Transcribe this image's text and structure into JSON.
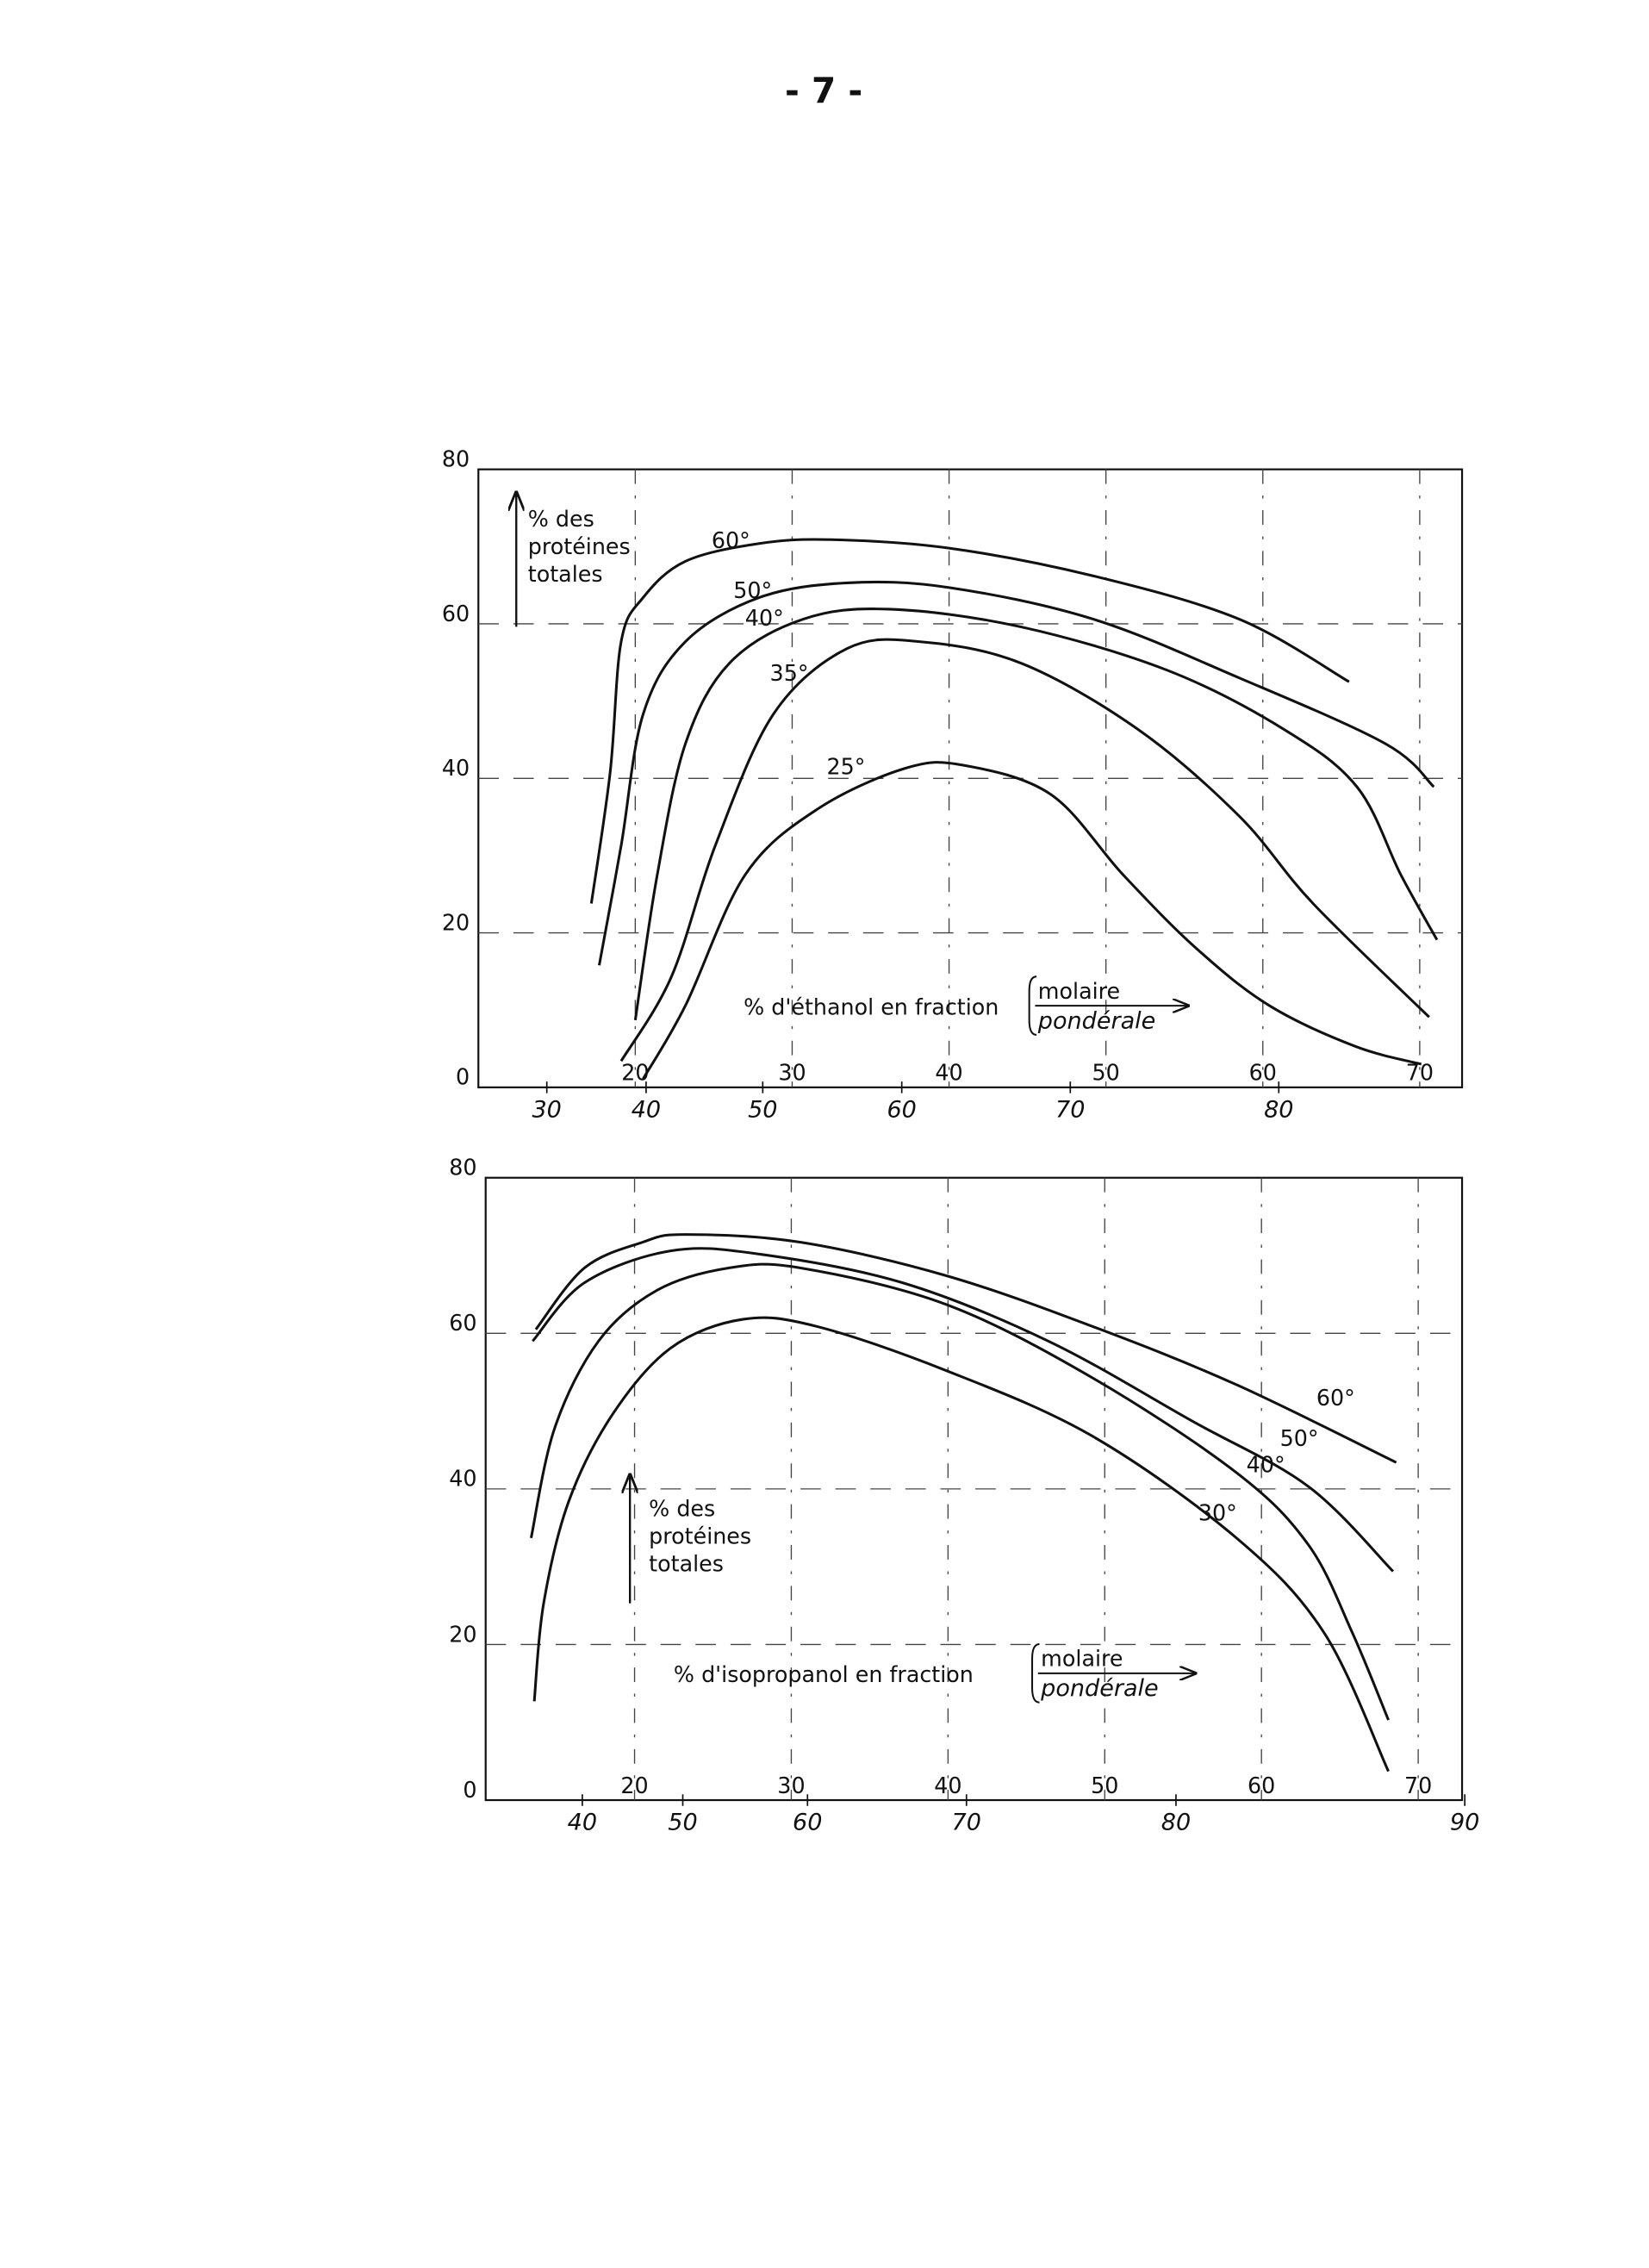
{
  "page": {
    "number": "- 7 -"
  },
  "chart_data": [
    {
      "type": "line",
      "ylabel": [
        "% des",
        "protéines",
        "totales"
      ],
      "xlabel": "% d'éthanol en fraction",
      "xaxis_label": "molaire",
      "x2axis_label": "pondérale",
      "xlim": [
        10,
        72.7
      ],
      "ylim": [
        0,
        80
      ],
      "xticks": [
        20,
        30,
        40,
        50,
        60,
        70
      ],
      "x2ticks": [
        30,
        40,
        50,
        60,
        70,
        80
      ],
      "yticks": [
        0,
        20,
        40,
        60,
        80
      ],
      "grid": true,
      "series": [
        {
          "name": "60°",
          "color": "#111111",
          "x": [
            17.2,
            18.4,
            19.1,
            20.5,
            23.2,
            27.9,
            32.5,
            40,
            49.2,
            58.5,
            65.5
          ],
          "values": [
            23.8,
            40.8,
            57.7,
            63.4,
            68.1,
            70.4,
            70.9,
            69.8,
            66.2,
            60.6,
            52.5
          ]
        },
        {
          "name": "50°",
          "color": "#111111",
          "x": [
            17.7,
            19.1,
            20.5,
            23.2,
            27.9,
            33.5,
            40,
            49.2,
            58.5,
            67.8,
            70.9
          ],
          "values": [
            15.8,
            31.3,
            48.3,
            57.7,
            63.4,
            65.3,
            64.7,
            60.6,
            53,
            44.5,
            38.9
          ]
        },
        {
          "name": "40°",
          "color": "#111111",
          "x": [
            20,
            21.4,
            23.2,
            26,
            30.7,
            36.2,
            44.6,
            53.9,
            61.3,
            66,
            68.8,
            71.1
          ],
          "values": [
            8.7,
            27.5,
            44.5,
            54.9,
            60.6,
            61.9,
            59.6,
            54,
            46.4,
            38.9,
            27.5,
            19.1
          ]
        },
        {
          "name": "35°",
          "color": "#111111",
          "x": [
            19.1,
            22.3,
            25.1,
            28.8,
            33.5,
            38.1,
            44.6,
            52,
            58.5,
            63.2,
            70.6
          ],
          "values": [
            3.4,
            14.3,
            31.3,
            48.3,
            56.8,
            57.7,
            54.9,
            46.4,
            35.1,
            23.8,
            9.1
          ]
        },
        {
          "name": "25°",
          "color": "#111111",
          "x": [
            20.5,
            23.2,
            27,
            31.6,
            37.2,
            40.9,
            46.5,
            51.1,
            55.7,
            60.4,
            65.9,
            70.1
          ],
          "values": [
            1.1,
            10.6,
            27.5,
            36,
            41.3,
            41.7,
            37.9,
            27.5,
            18.1,
            10.6,
            5.3,
            3
          ]
        }
      ]
    },
    {
      "type": "line",
      "ylabel": [
        "% des",
        "protéines",
        "totales"
      ],
      "xlabel": "% d'isopropanol en fraction",
      "xaxis_label": "molaire",
      "x2axis_label": "pondérale",
      "xlim": [
        10.5,
        72.8
      ],
      "ylim": [
        0,
        80
      ],
      "xticks": [
        20,
        30,
        40,
        50,
        60,
        70
      ],
      "x2ticks": [
        40,
        50,
        60,
        70,
        80,
        90
      ],
      "yticks": [
        0,
        20,
        40,
        60,
        80
      ],
      "grid": true,
      "series": [
        {
          "name": "60°",
          "color": "#111111",
          "x": [
            13.7,
            16.8,
            20.5,
            23.2,
            30.6,
            39.9,
            49.2,
            58.4,
            68.6
          ],
          "values": [
            60.5,
            68.4,
            71.7,
            72.7,
            71.7,
            67.4,
            60.9,
            53.4,
            43.4
          ]
        },
        {
          "name": "50°",
          "color": "#111111",
          "x": [
            13.5,
            16.8,
            22.3,
            27.9,
            37.1,
            46.4,
            55.6,
            63,
            68.4
          ],
          "values": [
            59,
            66.5,
            70.6,
            70.2,
            66.5,
            59,
            48.7,
            40.3,
            29.4
          ]
        },
        {
          "name": "40°",
          "color": "#111111",
          "x": [
            13.4,
            14.9,
            17.7,
            21.4,
            26,
            30.6,
            39.9,
            49.2,
            58.4,
            63,
            65.8,
            68.1
          ],
          "values": [
            33.7,
            47.8,
            59,
            65.5,
            68.4,
            68.4,
            63.7,
            54.3,
            42.1,
            32.8,
            21.5,
            10.3
          ]
        },
        {
          "name": "30°",
          "color": "#111111",
          "x": [
            13.6,
            14.2,
            15.8,
            18.6,
            22.3,
            26.9,
            31.6,
            39.9,
            49.2,
            58.4,
            64,
            68.1
          ],
          "values": [
            12.7,
            25.3,
            38.4,
            49.6,
            58.1,
            61.8,
            60.9,
            55.2,
            46.8,
            33.7,
            21.5,
            3.7
          ]
        }
      ]
    }
  ]
}
